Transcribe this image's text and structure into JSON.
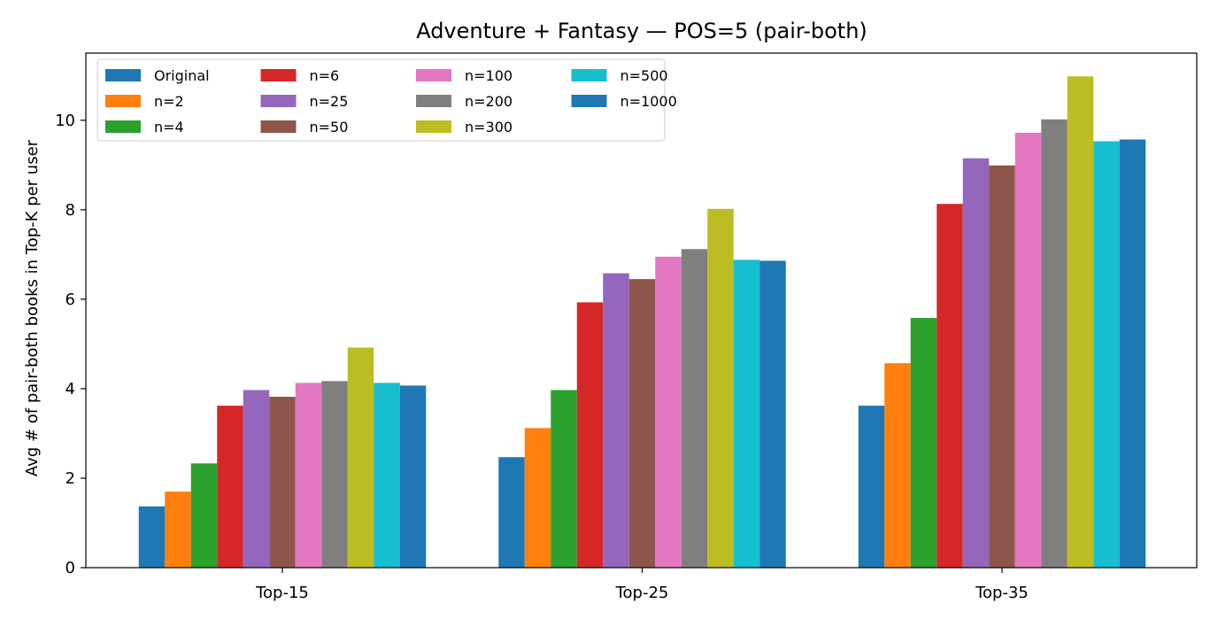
{
  "chart_data": {
    "type": "bar",
    "title": "Adventure + Fantasy — POS=5 (pair-both)",
    "xlabel": "",
    "ylabel": "Avg # of pair-both books in Top-K per user",
    "categories": [
      "Top-15",
      "Top-25",
      "Top-35"
    ],
    "ylim": [
      0,
      11.5
    ],
    "yticks": [
      0,
      2,
      4,
      6,
      8,
      10
    ],
    "grid": false,
    "legend_position": "top-left",
    "legend_columns": 4,
    "series": [
      {
        "name": "Original",
        "color": "#1f77b4",
        "values": [
          1.37,
          2.47,
          3.62
        ]
      },
      {
        "name": "n=2",
        "color": "#ff7f0e",
        "values": [
          1.7,
          3.12,
          4.57
        ]
      },
      {
        "name": "n=4",
        "color": "#2ca02c",
        "values": [
          2.33,
          3.97,
          5.58
        ]
      },
      {
        "name": "n=6",
        "color": "#d62728",
        "values": [
          3.62,
          5.93,
          8.13
        ]
      },
      {
        "name": "n=25",
        "color": "#9467bd",
        "values": [
          3.97,
          6.58,
          9.15
        ]
      },
      {
        "name": "n=50",
        "color": "#8c564b",
        "values": [
          3.82,
          6.45,
          8.99
        ]
      },
      {
        "name": "n=100",
        "color": "#e377c2",
        "values": [
          4.13,
          6.95,
          9.72
        ]
      },
      {
        "name": "n=200",
        "color": "#7f7f7f",
        "values": [
          4.17,
          7.12,
          10.02
        ]
      },
      {
        "name": "n=300",
        "color": "#bcbd22",
        "values": [
          4.92,
          8.02,
          10.98
        ]
      },
      {
        "name": "n=500",
        "color": "#17becf",
        "values": [
          4.13,
          6.88,
          9.53
        ]
      },
      {
        "name": "n=1000",
        "color": "#1f77b4",
        "values": [
          4.07,
          6.86,
          9.57
        ]
      }
    ]
  }
}
